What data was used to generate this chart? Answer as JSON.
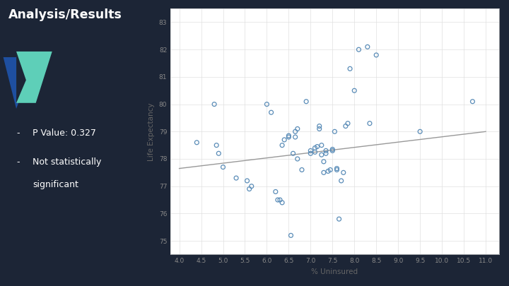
{
  "title": "Analysis/Results",
  "bullet1": "P Value: 0.327",
  "bullet2_line1": "Not statistically",
  "bullet2_line2": "significant",
  "xlabel": "% Uninsured",
  "ylabel": "Life Expectancy",
  "xlim": [
    3.8,
    11.3
  ],
  "ylim": [
    74.5,
    83.5
  ],
  "xticks": [
    4.0,
    4.5,
    5.0,
    5.5,
    6.0,
    6.5,
    7.0,
    7.5,
    8.0,
    8.5,
    9.0,
    9.5,
    10.0,
    10.5,
    11.0
  ],
  "yticks": [
    75,
    76,
    77,
    78,
    79,
    80,
    81,
    82,
    83
  ],
  "scatter_x": [
    4.4,
    4.8,
    4.85,
    4.9,
    5.0,
    5.3,
    5.55,
    5.6,
    5.65,
    6.0,
    6.1,
    6.2,
    6.25,
    6.3,
    6.35,
    6.35,
    6.4,
    6.5,
    6.5,
    6.55,
    6.6,
    6.65,
    6.65,
    6.7,
    6.7,
    6.8,
    6.9,
    7.0,
    7.0,
    7.1,
    7.1,
    7.15,
    7.2,
    7.2,
    7.25,
    7.25,
    7.3,
    7.3,
    7.35,
    7.35,
    7.4,
    7.45,
    7.5,
    7.5,
    7.55,
    7.6,
    7.6,
    7.65,
    7.7,
    7.75,
    7.8,
    7.85,
    7.9,
    8.0,
    8.1,
    8.3,
    8.35,
    8.5,
    9.5,
    10.7
  ],
  "scatter_y": [
    78.6,
    80.0,
    78.5,
    78.2,
    77.7,
    77.3,
    77.2,
    76.9,
    77.0,
    80.0,
    79.7,
    76.8,
    76.5,
    76.5,
    76.4,
    78.5,
    78.7,
    78.8,
    78.85,
    75.2,
    78.2,
    78.8,
    79.0,
    79.1,
    78.0,
    77.6,
    80.1,
    78.2,
    78.3,
    78.25,
    78.4,
    78.45,
    79.1,
    79.2,
    78.15,
    78.5,
    77.5,
    77.9,
    78.2,
    78.3,
    77.55,
    77.6,
    78.3,
    78.35,
    79.0,
    77.6,
    77.65,
    75.8,
    77.2,
    77.5,
    79.2,
    79.3,
    81.3,
    80.5,
    82.0,
    82.1,
    79.3,
    81.8,
    79.0,
    80.1
  ],
  "trendline_x": [
    4.0,
    11.0
  ],
  "trendline_y": [
    77.65,
    79.0
  ],
  "scatter_color": "#5b8db8",
  "trendline_color": "#999999",
  "bg_color": "#1c2536",
  "panel_bg": "#ffffff",
  "title_color": "#ffffff",
  "bullet_color": "#ffffff",
  "axis_label_color": "#666666",
  "tick_color": "#888888",
  "grid_color": "#e0e0e0",
  "logo_teal": "#5ecfb8",
  "logo_blue": "#1e4fa0",
  "logo_dark": "#1c2536"
}
